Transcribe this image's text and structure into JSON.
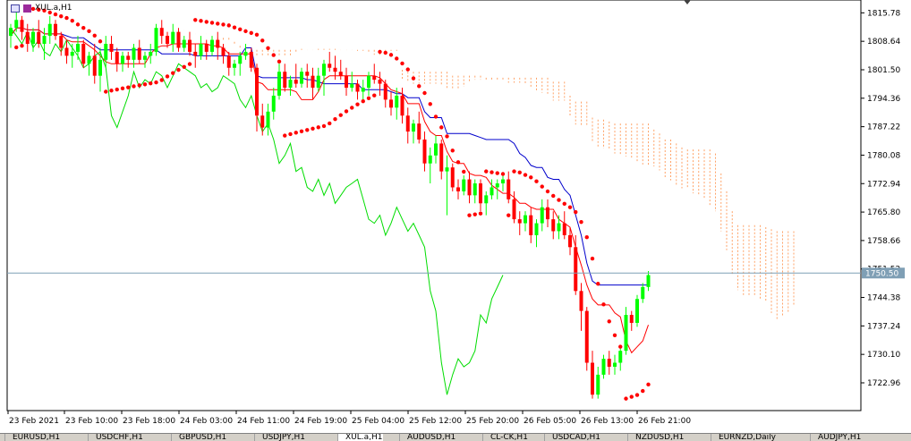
{
  "window": {
    "title": "XUL.a,H1"
  },
  "price_tag": "1750.50",
  "tabs": [
    "EURUSD,H1",
    "USDCHF,H1",
    "GBPUSD,H1",
    "USDJPY,H1",
    "XUL.a,H1",
    "AUDUSD,H1",
    "CL-CK,H1",
    "USDCAD,H1",
    "NZDUSD,H1",
    "EURNZD,Daily",
    "AUDJPY,H1"
  ],
  "active_tab": "XUL.a,H1",
  "chart_data": {
    "type": "candlestick",
    "symbol": "XUL.a",
    "timeframe": "H1",
    "current_price": 1750.5,
    "ylim": [
      1716.0,
      1819.0
    ],
    "y_ticks": [
      1815.78,
      1808.64,
      1801.5,
      1794.36,
      1787.22,
      1780.08,
      1772.94,
      1765.8,
      1758.66,
      1751.52,
      1744.38,
      1737.24,
      1730.1,
      1722.96
    ],
    "x_ticks": [
      "23 Feb 2021",
      "23 Feb 10:00",
      "23 Feb 18:00",
      "24 Feb 03:00",
      "24 Feb 11:00",
      "24 Feb 19:00",
      "25 Feb 04:00",
      "25 Feb 12:00",
      "25 Feb 20:00",
      "26 Feb 05:00",
      "26 Feb 13:00",
      "26 Feb 21:00"
    ],
    "colors": {
      "bull": "#00ff00",
      "bear": "#ff0000",
      "tenkan": "#ff0000",
      "kijun": "#0000cc",
      "chikou": "#00dd00",
      "cloud": "#ff8c42",
      "sar": "#ff0000",
      "price_line": "#7f9fb5"
    },
    "candles": [
      [
        1810,
        1813,
        1807,
        1812
      ],
      [
        1812,
        1817,
        1811,
        1814
      ],
      [
        1814,
        1815,
        1809,
        1811
      ],
      [
        1811,
        1813,
        1806,
        1808
      ],
      [
        1808,
        1812,
        1806,
        1811
      ],
      [
        1811,
        1814,
        1807,
        1808
      ],
      [
        1808,
        1812,
        1804,
        1810
      ],
      [
        1810,
        1815,
        1808,
        1813
      ],
      [
        1813,
        1814,
        1809,
        1810
      ],
      [
        1810,
        1811,
        1805,
        1807
      ],
      [
        1807,
        1809,
        1803,
        1805
      ],
      [
        1805,
        1808,
        1802,
        1806
      ],
      [
        1806,
        1810,
        1804,
        1808
      ],
      [
        1808,
        1809,
        1802,
        1803
      ],
      [
        1803,
        1806,
        1800,
        1805
      ],
      [
        1805,
        1808,
        1798,
        1800
      ],
      [
        1800,
        1807,
        1796,
        1804
      ],
      [
        1804,
        1810,
        1802,
        1808
      ],
      [
        1808,
        1810,
        1804,
        1806
      ],
      [
        1806,
        1807,
        1801,
        1803
      ],
      [
        1803,
        1806,
        1801,
        1805
      ],
      [
        1805,
        1806,
        1802,
        1804
      ],
      [
        1804,
        1808,
        1802,
        1807
      ],
      [
        1807,
        1809,
        1803,
        1804
      ],
      [
        1804,
        1806,
        1802,
        1805
      ],
      [
        1805,
        1808,
        1803,
        1806
      ],
      [
        1806,
        1813,
        1805,
        1812
      ],
      [
        1812,
        1814,
        1808,
        1810
      ],
      [
        1810,
        1811,
        1807,
        1808
      ],
      [
        1808,
        1813,
        1806,
        1811
      ],
      [
        1811,
        1812,
        1806,
        1807
      ],
      [
        1807,
        1810,
        1806,
        1809
      ],
      [
        1809,
        1811,
        1805,
        1806
      ],
      [
        1806,
        1808,
        1802,
        1805
      ],
      [
        1805,
        1810,
        1804,
        1808
      ],
      [
        1808,
        1809,
        1804,
        1806
      ],
      [
        1806,
        1810,
        1805,
        1809
      ],
      [
        1809,
        1811,
        1804,
        1807
      ],
      [
        1807,
        1808,
        1803,
        1805
      ],
      [
        1805,
        1806,
        1800,
        1802
      ],
      [
        1802,
        1804,
        1800,
        1803
      ],
      [
        1803,
        1806,
        1800,
        1805
      ],
      [
        1805,
        1808,
        1804,
        1806
      ],
      [
        1806,
        1807,
        1801,
        1802
      ],
      [
        1802,
        1803,
        1786,
        1790
      ],
      [
        1790,
        1793,
        1785,
        1787
      ],
      [
        1787,
        1793,
        1785,
        1791
      ],
      [
        1791,
        1797,
        1789,
        1795
      ],
      [
        1795,
        1803,
        1794,
        1801
      ],
      [
        1801,
        1803,
        1796,
        1797
      ],
      [
        1797,
        1800,
        1795,
        1799
      ],
      [
        1799,
        1803,
        1797,
        1798
      ],
      [
        1798,
        1802,
        1797,
        1801
      ],
      [
        1801,
        1803,
        1797,
        1800
      ],
      [
        1800,
        1802,
        1794,
        1797
      ],
      [
        1797,
        1802,
        1796,
        1800
      ],
      [
        1800,
        1804,
        1795,
        1803
      ],
      [
        1803,
        1806,
        1801,
        1802
      ],
      [
        1802,
        1805,
        1799,
        1801
      ],
      [
        1801,
        1804,
        1799,
        1800
      ],
      [
        1800,
        1802,
        1795,
        1797
      ],
      [
        1797,
        1801,
        1796,
        1798
      ],
      [
        1798,
        1799,
        1794,
        1796
      ],
      [
        1796,
        1799,
        1794,
        1797
      ],
      [
        1797,
        1801,
        1795,
        1800
      ],
      [
        1800,
        1803,
        1798,
        1799
      ],
      [
        1799,
        1801,
        1795,
        1798
      ],
      [
        1798,
        1799,
        1792,
        1794
      ],
      [
        1794,
        1796,
        1790,
        1792
      ],
      [
        1792,
        1797,
        1789,
        1795
      ],
      [
        1795,
        1797,
        1788,
        1790
      ],
      [
        1790,
        1792,
        1783,
        1786
      ],
      [
        1786,
        1789,
        1783,
        1788
      ],
      [
        1788,
        1791,
        1783,
        1784
      ],
      [
        1784,
        1786,
        1776,
        1778
      ],
      [
        1778,
        1782,
        1773,
        1780
      ],
      [
        1780,
        1785,
        1778,
        1783
      ],
      [
        1783,
        1784,
        1774,
        1776
      ],
      [
        1776,
        1780,
        1765,
        1777
      ],
      [
        1777,
        1778,
        1771,
        1772
      ],
      [
        1772,
        1774,
        1769,
        1771
      ],
      [
        1771,
        1775,
        1770,
        1774
      ],
      [
        1774,
        1776,
        1768,
        1770
      ],
      [
        1770,
        1774,
        1768,
        1773
      ],
      [
        1773,
        1774,
        1766,
        1768
      ],
      [
        1768,
        1771,
        1765,
        1770
      ],
      [
        1770,
        1774,
        1769,
        1772
      ],
      [
        1772,
        1774,
        1769,
        1773
      ],
      [
        1773,
        1775,
        1771,
        1774
      ],
      [
        1774,
        1776,
        1768,
        1769
      ],
      [
        1769,
        1771,
        1763,
        1764
      ],
      [
        1764,
        1766,
        1760,
        1763
      ],
      [
        1763,
        1766,
        1761,
        1765
      ],
      [
        1765,
        1767,
        1758,
        1760
      ],
      [
        1760,
        1764,
        1757,
        1763
      ],
      [
        1763,
        1769,
        1761,
        1767
      ],
      [
        1767,
        1769,
        1762,
        1764
      ],
      [
        1764,
        1766,
        1759,
        1761
      ],
      [
        1761,
        1765,
        1759,
        1763
      ],
      [
        1763,
        1766,
        1759,
        1760
      ],
      [
        1760,
        1762,
        1755,
        1757
      ],
      [
        1757,
        1760,
        1745,
        1746
      ],
      [
        1746,
        1748,
        1736,
        1741
      ],
      [
        1741,
        1742,
        1726,
        1728
      ],
      [
        1728,
        1731,
        1719,
        1720
      ],
      [
        1720,
        1727,
        1719,
        1725
      ],
      [
        1725,
        1730,
        1724,
        1729
      ],
      [
        1729,
        1731,
        1725,
        1727
      ],
      [
        1727,
        1730,
        1725,
        1728
      ],
      [
        1728,
        1732,
        1726,
        1731
      ],
      [
        1731,
        1742,
        1730,
        1740
      ],
      [
        1740,
        1741,
        1736,
        1738
      ],
      [
        1738,
        1745,
        1737,
        1744
      ],
      [
        1744,
        1748,
        1743,
        1747
      ],
      [
        1747,
        1751,
        1746,
        1750
      ]
    ]
  }
}
